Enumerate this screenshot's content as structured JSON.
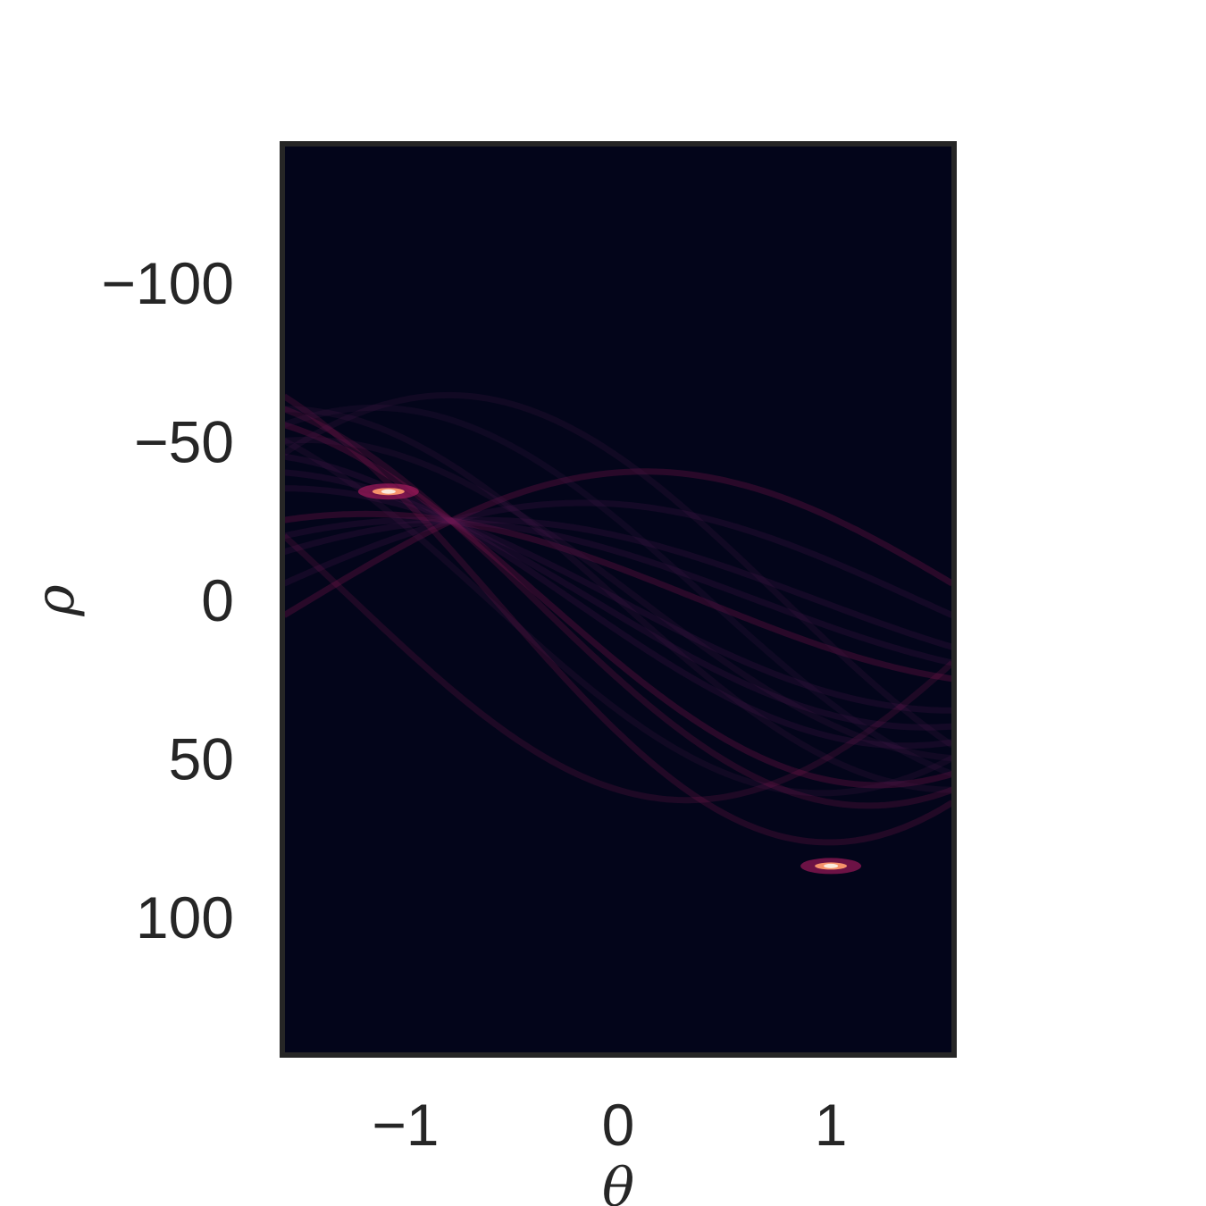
{
  "chart_data": {
    "type": "heatmap",
    "title": "",
    "xlabel": "θ",
    "ylabel": "ρ",
    "xlim": [
      -1.5708,
      1.5708
    ],
    "ylim": [
      143,
      -143
    ],
    "y_inverted": true,
    "x_ticks": [
      -1,
      0,
      1
    ],
    "x_tick_labels": [
      "−1",
      "0",
      "1"
    ],
    "y_ticks": [
      -100,
      -50,
      0,
      50,
      100
    ],
    "y_tick_labels": [
      "−100",
      "−50",
      "0",
      "50",
      "100"
    ],
    "colormap": "rocket",
    "background_color": "#03051A",
    "colors": {
      "frame": "#262626",
      "low": "#03051A",
      "band": "#4A1A4E",
      "mid": "#A11A5B",
      "high": "#F5926A",
      "peak": "#FAEBDD"
    },
    "curves": [
      {
        "x0": -40,
        "y0": -5,
        "intensity": 0.11
      },
      {
        "x0": -30,
        "y0": 5,
        "intensity": 0.11
      },
      {
        "x0": -20,
        "y0": 15,
        "intensity": 0.11
      },
      {
        "x0": -10,
        "y0": 25,
        "intensity": 0.11
      },
      {
        "x0": 0,
        "y0": 35,
        "intensity": 0.11
      },
      {
        "x0": 10,
        "y0": 45,
        "intensity": 0.11
      },
      {
        "x0": 20,
        "y0": 55,
        "intensity": 0.11
      },
      {
        "x0": -15,
        "y0": 20,
        "intensity": 0.11
      },
      {
        "x0": 5,
        "y0": 40,
        "intensity": 0.11
      },
      {
        "x0": 42,
        "y0": 64,
        "intensity": 0.09
      },
      {
        "x0": 0,
        "y0": 60,
        "intensity": 0.09
      },
      {
        "x0": -45,
        "y0": 46,
        "intensity": 0.09
      },
      {
        "x0": 60,
        "y0": 20,
        "intensity": 0.08
      },
      {
        "x0": 35,
        "y0": 50,
        "intensity": 0.09
      },
      {
        "x0": -5,
        "y0": 50,
        "intensity": 0.09
      },
      {
        "x0": 25,
        "y0": 60,
        "intensity": 0.09
      },
      {
        "x0": -25,
        "y0": 55,
        "intensity": 0.08
      }
    ],
    "peaks": [
      {
        "theta": -1.08,
        "rho": -34,
        "intensity": 1.0
      },
      {
        "theta": 1.0,
        "rho": 84,
        "intensity": 0.95
      }
    ]
  }
}
